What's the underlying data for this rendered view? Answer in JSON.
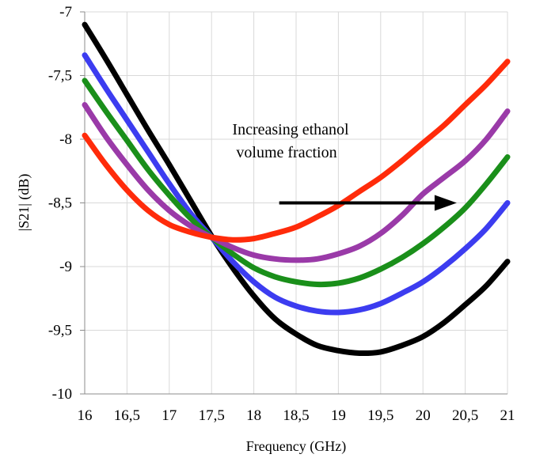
{
  "chart_data": {
    "type": "line",
    "title": "",
    "xlabel": "Frequency (GHz)",
    "ylabel": "|S21| (dB)",
    "xlim": [
      16,
      21
    ],
    "ylim": [
      -10,
      -7
    ],
    "grid": true,
    "legend": "none",
    "x_ticks": [
      16,
      16.5,
      17,
      17.5,
      18,
      18.5,
      19,
      19.5,
      20,
      20.5,
      21
    ],
    "x_tick_labels": [
      "16",
      "16,5",
      "17",
      "17,5",
      "18",
      "18,5",
      "19",
      "19,5",
      "20",
      "20,5",
      "21"
    ],
    "y_ticks": [
      -10,
      -9.5,
      -9,
      -8.5,
      -8,
      -7.5,
      -7
    ],
    "y_tick_labels": [
      "-10",
      "-9,5",
      "-9",
      "-8,5",
      "-8",
      "-7,5",
      "-7"
    ],
    "annotation": {
      "lines": [
        "Increasing ethanol",
        "volume fraction"
      ],
      "arrow_from": [
        18.3,
        -8.5
      ],
      "arrow_to": [
        20.4,
        -8.5
      ]
    },
    "series": [
      {
        "color": "#000000",
        "x": [
          16,
          16.25,
          16.5,
          16.75,
          17,
          17.25,
          17.5,
          17.75,
          18,
          18.25,
          18.5,
          18.75,
          19,
          19.25,
          19.5,
          19.75,
          20,
          20.25,
          20.5,
          20.75,
          21
        ],
        "y": [
          -7.1,
          -7.37,
          -7.65,
          -7.93,
          -8.2,
          -8.48,
          -8.76,
          -9.01,
          -9.23,
          -9.41,
          -9.53,
          -9.62,
          -9.66,
          -9.68,
          -9.67,
          -9.62,
          -9.55,
          -9.44,
          -9.3,
          -9.15,
          -8.96
        ]
      },
      {
        "color": "#3c3cf0",
        "x": [
          16,
          16.25,
          16.5,
          16.75,
          17,
          17.25,
          17.5,
          17.75,
          18,
          18.25,
          18.5,
          18.75,
          19,
          19.25,
          19.5,
          19.75,
          20,
          20.25,
          20.5,
          20.75,
          21
        ],
        "y": [
          -7.34,
          -7.6,
          -7.85,
          -8.1,
          -8.35,
          -8.58,
          -8.77,
          -8.96,
          -9.12,
          -9.24,
          -9.31,
          -9.35,
          -9.36,
          -9.34,
          -9.29,
          -9.21,
          -9.12,
          -9.0,
          -8.86,
          -8.7,
          -8.5
        ]
      },
      {
        "color": "#1a8f1a",
        "x": [
          16,
          16.25,
          16.5,
          16.75,
          17,
          17.25,
          17.5,
          17.75,
          18,
          18.25,
          18.5,
          18.75,
          19,
          19.25,
          19.5,
          19.75,
          20,
          20.25,
          20.5,
          20.75,
          21
        ],
        "y": [
          -7.54,
          -7.78,
          -8.01,
          -8.24,
          -8.44,
          -8.62,
          -8.77,
          -8.9,
          -9.01,
          -9.08,
          -9.12,
          -9.14,
          -9.13,
          -9.09,
          -9.02,
          -8.93,
          -8.82,
          -8.69,
          -8.54,
          -8.35,
          -8.14
        ]
      },
      {
        "color": "#9a3aa8",
        "x": [
          16,
          16.25,
          16.5,
          16.75,
          17,
          17.25,
          17.5,
          17.75,
          18,
          18.25,
          18.5,
          18.75,
          19,
          19.25,
          19.5,
          19.75,
          20,
          20.25,
          20.5,
          20.75,
          21
        ],
        "y": [
          -7.73,
          -7.98,
          -8.2,
          -8.4,
          -8.56,
          -8.68,
          -8.77,
          -8.85,
          -8.91,
          -8.94,
          -8.95,
          -8.94,
          -8.9,
          -8.84,
          -8.74,
          -8.6,
          -8.43,
          -8.3,
          -8.17,
          -8.0,
          -7.78
        ]
      },
      {
        "color": "#ff2b0a",
        "x": [
          16,
          16.25,
          16.5,
          16.75,
          17,
          17.25,
          17.5,
          17.75,
          18,
          18.25,
          18.5,
          18.75,
          19,
          19.25,
          19.5,
          19.75,
          20,
          20.25,
          20.5,
          20.75,
          21
        ],
        "y": [
          -7.97,
          -8.2,
          -8.4,
          -8.56,
          -8.67,
          -8.73,
          -8.77,
          -8.79,
          -8.78,
          -8.74,
          -8.69,
          -8.61,
          -8.52,
          -8.41,
          -8.3,
          -8.17,
          -8.03,
          -7.89,
          -7.73,
          -7.57,
          -7.39
        ]
      }
    ]
  }
}
